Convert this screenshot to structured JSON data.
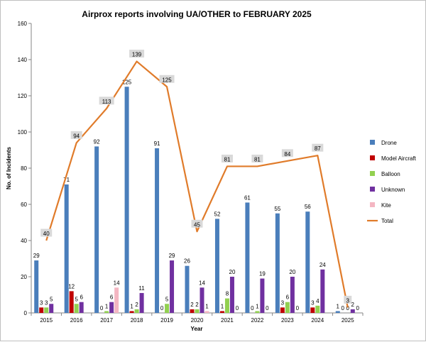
{
  "chart_data": {
    "type": "bar",
    "title": "Airprox reports involving UA/OTHER to FEBRUARY 2025",
    "xlabel": "Year",
    "ylabel": "No. of Incidents",
    "ylim": [
      0,
      160
    ],
    "yticks": [
      0,
      20,
      40,
      60,
      80,
      100,
      120,
      140,
      160
    ],
    "grid": false,
    "legend_position": "right",
    "categories": [
      "2015",
      "2016",
      "2017",
      "2018",
      "2019",
      "2020",
      "2021",
      "2022",
      "2023",
      "2024",
      "2025"
    ],
    "series": [
      {
        "name": "Drone",
        "type": "bar",
        "color": "#4a7ebb",
        "values": [
          29,
          71,
          92,
          125,
          91,
          26,
          52,
          61,
          55,
          56,
          1
        ]
      },
      {
        "name": "Model Aircraft",
        "type": "bar",
        "color": "#c00000",
        "values": [
          3,
          12,
          0,
          1,
          0,
          2,
          1,
          0,
          3,
          3,
          0
        ]
      },
      {
        "name": "Balloon",
        "type": "bar",
        "color": "#92d050",
        "values": [
          3,
          5,
          1,
          2,
          5,
          2,
          8,
          1,
          6,
          4,
          0
        ]
      },
      {
        "name": "Unknown",
        "type": "bar",
        "color": "#7030a0",
        "values": [
          5,
          6,
          6,
          11,
          29,
          14,
          20,
          19,
          20,
          24,
          2
        ]
      },
      {
        "name": "Kite",
        "type": "bar",
        "color": "#f4b6c2",
        "values": [
          null,
          null,
          14,
          null,
          null,
          1,
          0,
          0,
          0,
          null,
          0
        ]
      },
      {
        "name": "Total",
        "type": "line",
        "color": "#e07b2a",
        "values": [
          40,
          94,
          113,
          139,
          125,
          45,
          81,
          81,
          84,
          87,
          3
        ]
      }
    ]
  }
}
